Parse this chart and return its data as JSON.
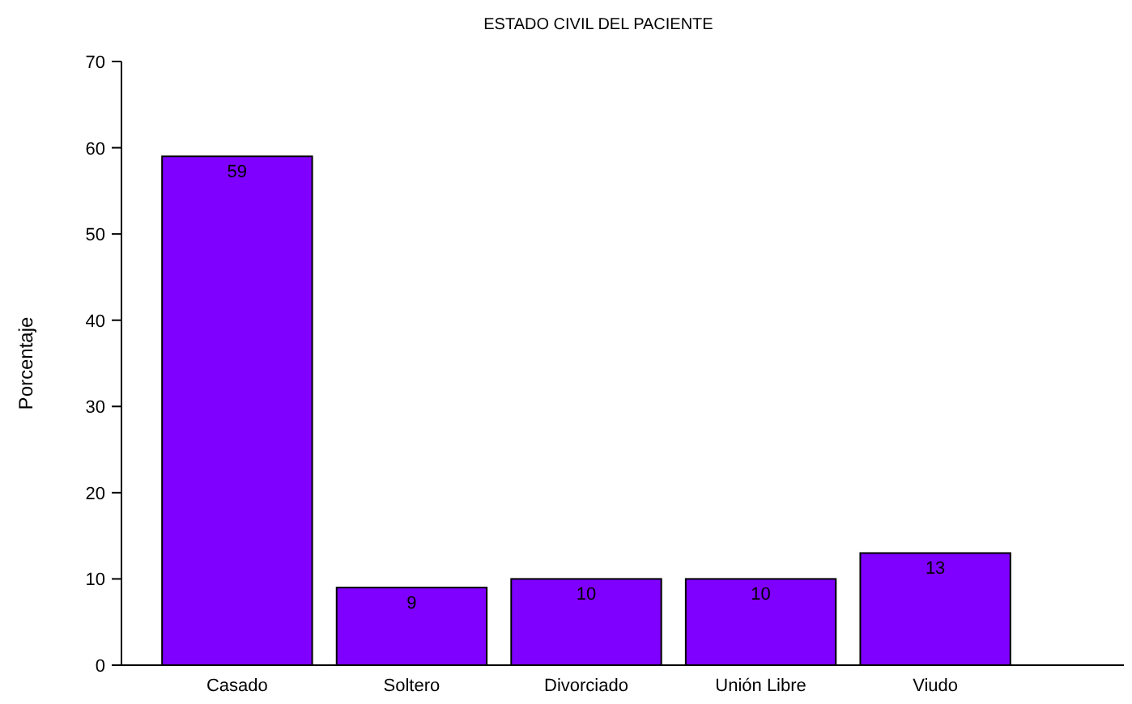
{
  "chart_data": {
    "type": "bar",
    "title": "ESTADO CIVIL DEL PACIENTE",
    "ylabel": "Porcentaje",
    "categories": [
      "Casado",
      "Soltero",
      "Divorciado",
      "Unión Libre",
      "Viudo"
    ],
    "values": [
      59,
      9,
      10,
      10,
      13
    ],
    "color": "#7f00ff",
    "ylim": [
      0,
      70
    ],
    "yticks": [
      0,
      10,
      20,
      30,
      40,
      50,
      60,
      70
    ],
    "data_labels": true
  }
}
